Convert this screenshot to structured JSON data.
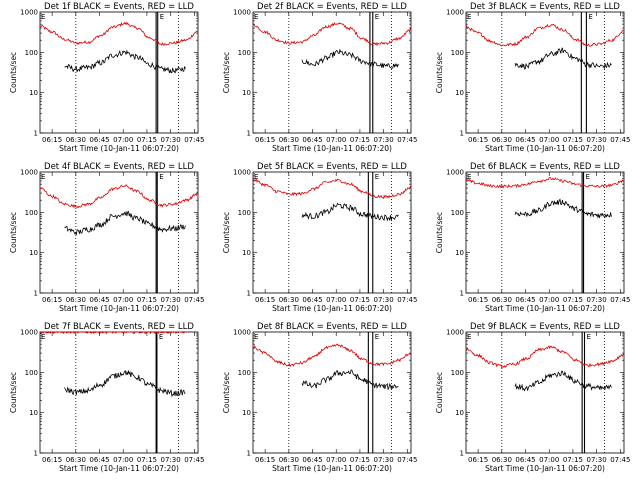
{
  "figure": {
    "colors": {
      "events": "#000000",
      "lld": "#dd0000",
      "background": "#ffffff"
    }
  },
  "chart_data": [
    {
      "type": "line",
      "title": "Det 1f BLACK = Events, RED = LLD",
      "ylabel": "Counts/sec",
      "xlabel": "Start Time (10-Jan-11 06:07:20)",
      "xticks": [
        "06:15",
        "06:30",
        "06:45",
        "07:00",
        "07:15",
        "07:30",
        "07:45"
      ],
      "yticks": [
        "1",
        "10",
        "100",
        "1000"
      ],
      "log_y": true,
      "ylim": [
        1,
        1000
      ],
      "series": [
        {
          "color": "#dd0000",
          "values": [
            450,
            320,
            210,
            170,
            180,
            260,
            420,
            520,
            400,
            230,
            160,
            170,
            200,
            330
          ]
        },
        {
          "color": "#000000",
          "values": [
            null,
            null,
            45,
            38,
            42,
            55,
            85,
            100,
            75,
            50,
            38,
            35,
            40,
            null
          ]
        }
      ],
      "flag_labels": [
        "E",
        "E"
      ]
    },
    {
      "type": "line",
      "title": "Det 2f BLACK = Events, RED = LLD",
      "ylabel": "Counts/sec",
      "xlabel": "Start Time (10-Jan-11 06:07:20)",
      "xticks": [
        "06:15",
        "06:30",
        "06:45",
        "07:00",
        "07:15",
        "07:30",
        "07:45"
      ],
      "yticks": [
        "1",
        "10",
        "100",
        "1000"
      ],
      "log_y": true,
      "ylim": [
        1,
        1000
      ],
      "series": [
        {
          "color": "#dd0000",
          "values": [
            480,
            320,
            200,
            170,
            180,
            260,
            430,
            520,
            390,
            220,
            160,
            170,
            220,
            360
          ]
        },
        {
          "color": "#000000",
          "values": [
            null,
            null,
            null,
            null,
            60,
            50,
            70,
            100,
            85,
            60,
            50,
            45,
            48,
            null
          ]
        }
      ],
      "flag_labels": [
        "E",
        "E"
      ]
    },
    {
      "type": "line",
      "title": "Det 3f BLACK = Events, RED = LLD",
      "ylabel": "Counts/sec",
      "xlabel": "Start Time (10-Jan-11 06:07:20)",
      "xticks": [
        "06:15",
        "06:30",
        "06:45",
        "07:00",
        "07:15",
        "07:30",
        "07:45"
      ],
      "yticks": [
        "1",
        "10",
        "100",
        "1000"
      ],
      "log_y": true,
      "ylim": [
        1,
        1000
      ],
      "series": [
        {
          "color": "#dd0000",
          "values": [
            420,
            300,
            190,
            150,
            160,
            240,
            400,
            480,
            360,
            210,
            150,
            160,
            200,
            350
          ]
        },
        {
          "color": "#000000",
          "values": [
            null,
            null,
            null,
            null,
            50,
            45,
            60,
            90,
            110,
            70,
            50,
            45,
            48,
            null
          ]
        }
      ],
      "flag_labels": [
        "E",
        "E"
      ]
    },
    {
      "type": "line",
      "title": "Det 4f BLACK = Events, RED = LLD",
      "ylabel": "Counts/sec",
      "xlabel": "Start Time (10-Jan-11 06:07:20)",
      "xticks": [
        "06:15",
        "06:30",
        "06:45",
        "07:00",
        "07:15",
        "07:30",
        "07:45"
      ],
      "yticks": [
        "1",
        "10",
        "100",
        "1000"
      ],
      "log_y": true,
      "ylim": [
        1,
        1000
      ],
      "series": [
        {
          "color": "#dd0000",
          "values": [
            400,
            250,
            160,
            140,
            160,
            230,
            380,
            450,
            330,
            200,
            150,
            160,
            200,
            290
          ]
        },
        {
          "color": "#000000",
          "values": [
            null,
            null,
            40,
            32,
            38,
            50,
            80,
            95,
            70,
            50,
            38,
            40,
            45,
            null
          ]
        }
      ],
      "flag_labels": [
        "E",
        "E"
      ]
    },
    {
      "type": "line",
      "title": "Det 5f BLACK = Events, RED = LLD",
      "ylabel": "Counts/sec",
      "xlabel": "Start Time (10-Jan-11 06:07:20)",
      "xticks": [
        "06:15",
        "06:30",
        "06:45",
        "07:00",
        "07:15",
        "07:30",
        "07:45"
      ],
      "yticks": [
        "1",
        "10",
        "100",
        "1000"
      ],
      "log_y": true,
      "ylim": [
        1,
        1000
      ],
      "series": [
        {
          "color": "#dd0000",
          "values": [
            650,
            480,
            330,
            280,
            290,
            380,
            550,
            620,
            500,
            330,
            250,
            240,
            280,
            420
          ]
        },
        {
          "color": "#000000",
          "values": [
            null,
            null,
            null,
            null,
            85,
            80,
            100,
            150,
            130,
            90,
            78,
            75,
            76,
            null
          ]
        }
      ],
      "flag_labels": [
        "E",
        "E"
      ]
    },
    {
      "type": "line",
      "title": "Det 6f BLACK = Events, RED = LLD",
      "ylabel": "Counts/sec",
      "xlabel": "Start Time (10-Jan-11 06:07:20)",
      "xticks": [
        "06:15",
        "06:30",
        "06:45",
        "07:00",
        "07:15",
        "07:30",
        "07:45"
      ],
      "yticks": [
        "1",
        "10",
        "100",
        "1000"
      ],
      "log_y": true,
      "ylim": [
        1,
        1000
      ],
      "series": [
        {
          "color": "#dd0000",
          "values": [
            620,
            520,
            450,
            440,
            450,
            500,
            600,
            680,
            600,
            500,
            450,
            440,
            470,
            620
          ]
        },
        {
          "color": "#000000",
          "values": [
            null,
            null,
            null,
            null,
            95,
            90,
            110,
            170,
            180,
            120,
            90,
            85,
            88,
            null
          ]
        }
      ],
      "flag_labels": [
        "E",
        "E"
      ]
    },
    {
      "type": "line",
      "title": "Det 7f BLACK = Events, RED = LLD",
      "ylabel": "Counts/sec",
      "xlabel": "Start Time (10-Jan-11 06:07:20)",
      "xticks": [
        "06:15",
        "06:30",
        "06:45",
        "07:00",
        "07:15",
        "07:30",
        "07:45"
      ],
      "yticks": [
        "1",
        "10",
        "100",
        "1000"
      ],
      "log_y": true,
      "ylim": [
        1,
        1000
      ],
      "series": [
        {
          "color": "#dd0000",
          "values": [
            1000,
            1000,
            1000,
            1000,
            1000,
            1000,
            1000,
            1000,
            1000,
            1000,
            1000,
            1000,
            1000,
            null
          ]
        },
        {
          "color": "#000000",
          "values": [
            null,
            null,
            38,
            32,
            35,
            50,
            80,
            100,
            75,
            48,
            35,
            30,
            32,
            null
          ]
        }
      ],
      "flag_labels": [
        "E",
        "E"
      ]
    },
    {
      "type": "line",
      "title": "Det 8f BLACK = Events, RED = LLD",
      "ylabel": "Counts/sec",
      "xlabel": "Start Time (10-Jan-11 06:07:20)",
      "xticks": [
        "06:15",
        "06:30",
        "06:45",
        "07:00",
        "07:15",
        "07:30",
        "07:45"
      ],
      "yticks": [
        "1",
        "10",
        "100",
        "1000"
      ],
      "log_y": true,
      "ylim": [
        1,
        1000
      ],
      "series": [
        {
          "color": "#dd0000",
          "values": [
            420,
            300,
            180,
            150,
            170,
            240,
            400,
            470,
            350,
            210,
            160,
            160,
            200,
            300
          ]
        },
        {
          "color": "#000000",
          "values": [
            null,
            null,
            null,
            null,
            55,
            45,
            65,
            95,
            100,
            65,
            48,
            44,
            46,
            null
          ]
        }
      ],
      "flag_labels": [
        "E",
        "E"
      ]
    },
    {
      "type": "line",
      "title": "Det 9f BLACK = Events, RED = LLD",
      "ylabel": "Counts/sec",
      "xlabel": "Start Time (10-Jan-11 06:07:20)",
      "xticks": [
        "06:15",
        "06:30",
        "06:45",
        "07:00",
        "07:15",
        "07:30",
        "07:45"
      ],
      "yticks": [
        "1",
        "10",
        "100",
        "1000"
      ],
      "log_y": true,
      "ylim": [
        1,
        1000
      ],
      "series": [
        {
          "color": "#dd0000",
          "values": [
            380,
            260,
            170,
            140,
            160,
            220,
            360,
            420,
            320,
            200,
            150,
            160,
            190,
            280
          ]
        },
        {
          "color": "#000000",
          "values": [
            null,
            null,
            null,
            null,
            45,
            40,
            55,
            85,
            95,
            60,
            45,
            40,
            42,
            null
          ]
        }
      ],
      "flag_labels": [
        "E",
        "E"
      ]
    }
  ]
}
